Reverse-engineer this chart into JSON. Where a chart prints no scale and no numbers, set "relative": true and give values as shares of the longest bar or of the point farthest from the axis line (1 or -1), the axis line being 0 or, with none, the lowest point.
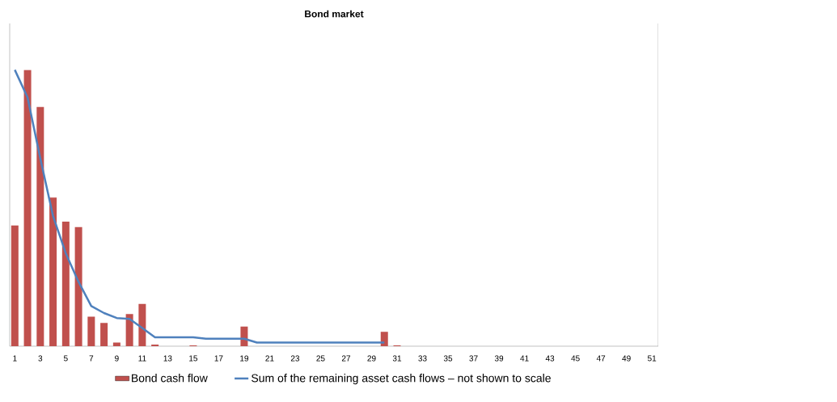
{
  "chart_data": {
    "type": "bar",
    "title": "Bond market",
    "relative": true,
    "legend": "bottom",
    "categories": [
      "1",
      null,
      "3",
      null,
      "5",
      null,
      "7",
      null,
      "9",
      null,
      "11",
      null,
      "13",
      null,
      "15",
      null,
      "17",
      null,
      "19",
      null,
      "21",
      null,
      "23",
      null,
      "25",
      null,
      "27",
      null,
      "29",
      null,
      "31",
      null,
      "33",
      null,
      "35",
      null,
      "37",
      null,
      "39",
      null,
      "41",
      null,
      "43",
      null,
      "45",
      null,
      "47",
      null,
      "49",
      null,
      "51"
    ],
    "series": [
      {
        "name": "Bond cash flow",
        "color": "#c0504d",
        "values": [
          0.437,
          1,
          0.866,
          0.538,
          0.451,
          0.431,
          0.107,
          0.084,
          0.013,
          0.116,
          0.153,
          0.006,
          0,
          0,
          0.003,
          0,
          0,
          0,
          0.071,
          0,
          0,
          0,
          0,
          0,
          0,
          0,
          0,
          0,
          0,
          0.052,
          0.003,
          0,
          0,
          0,
          0,
          0,
          0,
          0,
          0,
          0,
          0,
          0,
          0,
          0,
          0,
          0,
          0,
          0,
          0,
          0,
          0
        ]
      },
      {
        "name": "Sum of the remaining asset cash flows – not shown to scale",
        "type": "line",
        "color": "#4f81bd",
        "values": [
          1,
          0.9,
          0.68,
          0.471,
          0.336,
          0.233,
          0.145,
          0.12,
          0.102,
          0.099,
          0.066,
          0.032,
          0.032,
          0.032,
          0.032,
          0.027,
          0.027,
          0.027,
          0.027,
          0.013,
          0.013,
          0.013,
          0.013,
          0.013,
          0.013,
          0.013,
          0.013,
          0.013,
          0.013,
          0.013,
          null,
          null,
          null,
          null,
          null,
          null,
          null,
          null,
          null,
          null,
          null,
          null,
          null,
          null,
          null,
          null,
          null,
          null,
          null,
          null,
          null
        ]
      }
    ]
  }
}
